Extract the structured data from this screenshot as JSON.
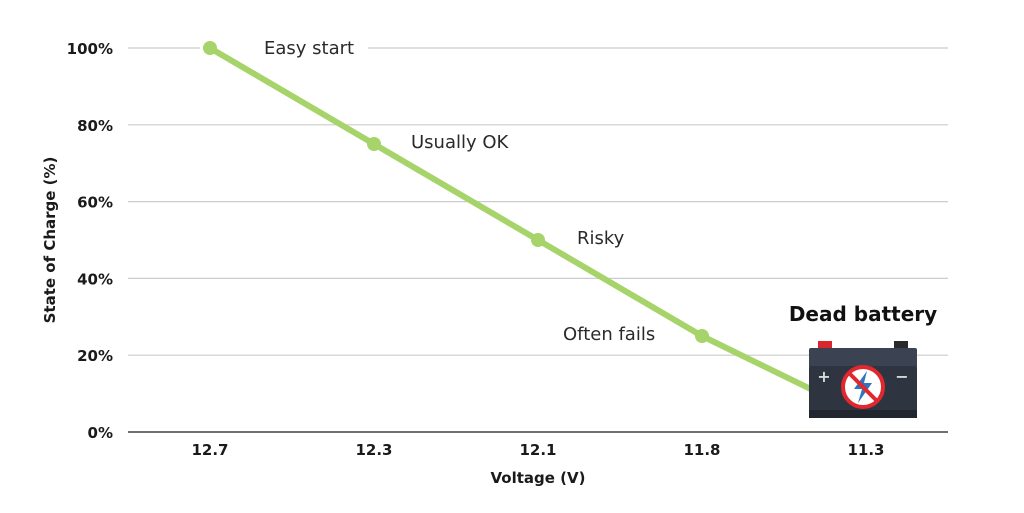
{
  "chart_data": {
    "type": "line",
    "x": [
      "12.7",
      "12.3",
      "12.1",
      "11.8",
      "11.3"
    ],
    "series": [
      {
        "values": [
          100,
          75,
          50,
          25,
          10
        ]
      }
    ],
    "marker_points": [
      0,
      1,
      2,
      3
    ],
    "xlabel": "Voltage (V)",
    "ylabel": "State of Charge (%)",
    "ylim": [
      0,
      100
    ],
    "yticks": [
      "0%",
      "20%",
      "40%",
      "60%",
      "80%",
      "100%"
    ],
    "ytick_values": [
      0,
      20,
      40,
      60,
      80,
      100
    ],
    "grid": true,
    "annotations": [
      "Easy start",
      "Usually OK",
      "Risky",
      "Often fails"
    ],
    "callout": "Dead battery",
    "colors": {
      "line": "#a6d46a",
      "grid": "#cccccc",
      "axis": "#1a1a1a"
    },
    "icon": "dead-battery-icon"
  }
}
